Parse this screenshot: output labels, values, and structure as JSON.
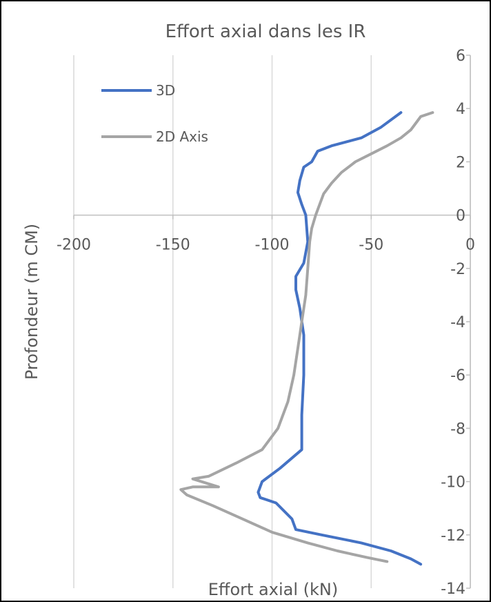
{
  "chart_data": {
    "type": "line",
    "title": "Effort axial dans les IR",
    "xlabel": "Effort axial (kN)",
    "ylabel": "Profondeur (m CM)",
    "xlim": [
      -200,
      0
    ],
    "ylim": [
      -14,
      6
    ],
    "x_ticks": [
      -200,
      -150,
      -100,
      -50,
      0
    ],
    "y_ticks": [
      6,
      4,
      2,
      0,
      -2,
      -4,
      -6,
      -8,
      -10,
      -12,
      -14
    ],
    "grid": "vertical",
    "legend": "top-left",
    "series": [
      {
        "name": "3D",
        "color": "#4472C4",
        "points": [
          [
            -35,
            3.85
          ],
          [
            -45,
            3.3
          ],
          [
            -55,
            2.9
          ],
          [
            -70,
            2.6
          ],
          [
            -77,
            2.4
          ],
          [
            -80,
            2.0
          ],
          [
            -84,
            1.8
          ],
          [
            -86,
            1.3
          ],
          [
            -87,
            0.85
          ],
          [
            -85,
            0.4
          ],
          [
            -83,
            0.0
          ],
          [
            -82,
            -1.0
          ],
          [
            -84,
            -1.8
          ],
          [
            -88,
            -2.3
          ],
          [
            -88,
            -2.8
          ],
          [
            -86,
            -3.5
          ],
          [
            -84,
            -4.5
          ],
          [
            -84,
            -6.0
          ],
          [
            -85,
            -7.5
          ],
          [
            -85,
            -8.8
          ],
          [
            -96,
            -9.5
          ],
          [
            -105,
            -10.0
          ],
          [
            -107,
            -10.4
          ],
          [
            -106,
            -10.6
          ],
          [
            -98,
            -10.8
          ],
          [
            -90,
            -11.4
          ],
          [
            -88,
            -11.8
          ],
          [
            -75,
            -12.0
          ],
          [
            -55,
            -12.3
          ],
          [
            -40,
            -12.6
          ],
          [
            -30,
            -12.9
          ],
          [
            -25,
            -13.1
          ]
        ]
      },
      {
        "name": "2D Axis",
        "color": "#A5A5A5",
        "points": [
          [
            -19,
            3.85
          ],
          [
            -25,
            3.7
          ],
          [
            -27,
            3.5
          ],
          [
            -30,
            3.2
          ],
          [
            -35,
            2.9
          ],
          [
            -42,
            2.6
          ],
          [
            -50,
            2.3
          ],
          [
            -58,
            2.0
          ],
          [
            -65,
            1.6
          ],
          [
            -70,
            1.2
          ],
          [
            -74,
            0.8
          ],
          [
            -76,
            0.4
          ],
          [
            -78,
            0.0
          ],
          [
            -80,
            -0.5
          ],
          [
            -81,
            -1.0
          ],
          [
            -82,
            -2.0
          ],
          [
            -83,
            -3.0
          ],
          [
            -85,
            -4.0
          ],
          [
            -87,
            -5.0
          ],
          [
            -89,
            -6.0
          ],
          [
            -92,
            -7.0
          ],
          [
            -97,
            -8.0
          ],
          [
            -105,
            -8.8
          ],
          [
            -118,
            -9.3
          ],
          [
            -132,
            -9.8
          ],
          [
            -140,
            -9.9
          ],
          [
            -127,
            -10.2
          ],
          [
            -140,
            -10.2
          ],
          [
            -146,
            -10.3
          ],
          [
            -143,
            -10.5
          ],
          [
            -130,
            -10.9
          ],
          [
            -115,
            -11.4
          ],
          [
            -100,
            -11.9
          ],
          [
            -82,
            -12.3
          ],
          [
            -67,
            -12.6
          ],
          [
            -52,
            -12.85
          ],
          [
            -42,
            -13.0
          ]
        ]
      }
    ]
  }
}
